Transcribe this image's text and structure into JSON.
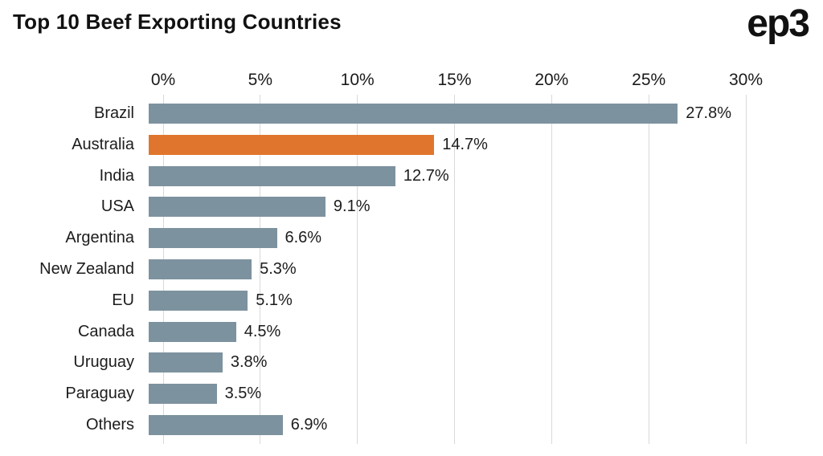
{
  "header": {
    "title": "Top 10 Beef Exporting Countries",
    "logo": "ep3"
  },
  "chart_data": {
    "type": "bar",
    "orientation": "horizontal",
    "title": "Top 10 Beef Exporting Countries",
    "categories": [
      "Brazil",
      "Australia",
      "India",
      "USA",
      "Argentina",
      "New Zealand",
      "EU",
      "Canada",
      "Uruguay",
      "Paraguay",
      "Others"
    ],
    "values": [
      27.8,
      14.7,
      12.7,
      9.1,
      6.6,
      5.3,
      5.1,
      4.5,
      3.8,
      3.5,
      6.9
    ],
    "value_labels": [
      "27.8%",
      "14.7%",
      "12.7%",
      "9.1%",
      "6.6%",
      "5.3%",
      "5.1%",
      "4.5%",
      "3.8%",
      "3.5%",
      "6.9%"
    ],
    "x_ticks": [
      "0%",
      "5%",
      "10%",
      "15%",
      "20%",
      "25%",
      "30%"
    ],
    "xlim": [
      0,
      30
    ],
    "grid": true,
    "legend": "none",
    "highlight_category": "Australia",
    "bar_color": "#7d929f",
    "highlight_color": "#e0762d",
    "gridline_color": "#d9d9d9",
    "text_color": "#1c1c1c"
  }
}
